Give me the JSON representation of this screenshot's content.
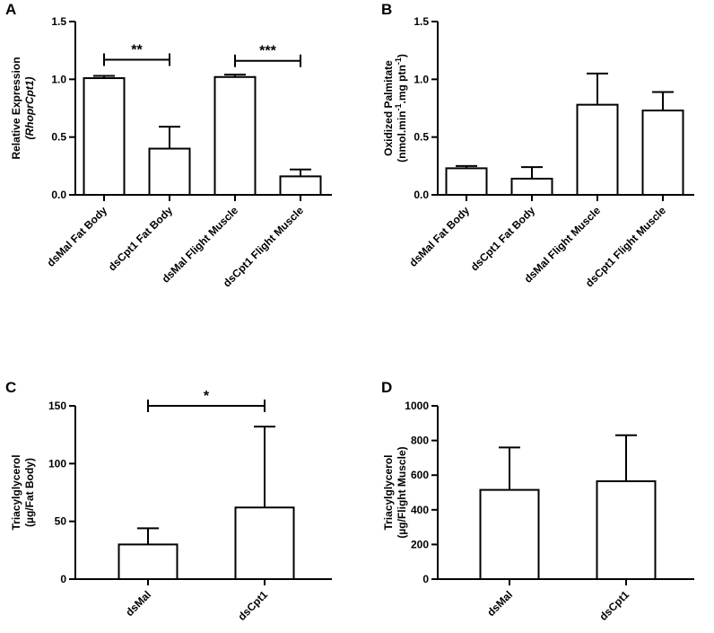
{
  "chart_data": [
    {
      "id": "A",
      "type": "bar",
      "panel_label": "A",
      "ylabel": [
        "Relative Expression",
        "(RhoprCpt1)"
      ],
      "categories": [
        "dsMal Fat Body",
        "dsCpt1 Fat Body",
        "dsMal Flight Muscle",
        "dsCpt1 Flight Muscle"
      ],
      "values": [
        1.01,
        0.4,
        1.02,
        0.16
      ],
      "errors": [
        0.02,
        0.19,
        0.02,
        0.06
      ],
      "ylim": [
        0,
        1.5
      ],
      "yticks": [
        "0.0",
        "0.5",
        "1.0",
        "1.5"
      ],
      "significance": [
        {
          "from": 0,
          "to": 1,
          "label": "**",
          "y": 1.17
        },
        {
          "from": 2,
          "to": 3,
          "label": "***",
          "y": 1.16
        }
      ]
    },
    {
      "id": "B",
      "type": "bar",
      "panel_label": "B",
      "ylabel": [
        "Oxidized Palmitate",
        "(nmol.min-1.mg ptn-1)"
      ],
      "categories": [
        "dsMal Fat Body",
        "dsCpt1 Fat Body",
        "dsMal Flight Muscle",
        "dsCpt1 Flight Muscle"
      ],
      "values": [
        0.23,
        0.14,
        0.78,
        0.73
      ],
      "errors": [
        0.02,
        0.1,
        0.27,
        0.16
      ],
      "ylim": [
        0,
        1.5
      ],
      "yticks": [
        "0.0",
        "0.5",
        "1.0",
        "1.5"
      ],
      "significance": []
    },
    {
      "id": "C",
      "type": "bar",
      "panel_label": "C",
      "ylabel": [
        "Triacylglycerol",
        "(µg/Fat Body)"
      ],
      "categories": [
        "dsMal",
        "dsCpt1"
      ],
      "values": [
        30,
        62
      ],
      "errors": [
        14,
        70
      ],
      "ylim": [
        0,
        150
      ],
      "yticks": [
        "0",
        "50",
        "100",
        "150"
      ],
      "significance": [
        {
          "from": 0,
          "to": 1,
          "label": "*",
          "y": 150
        }
      ]
    },
    {
      "id": "D",
      "type": "bar",
      "panel_label": "D",
      "ylabel": [
        "Triacylglycerol",
        "(µg/Flight  Muscle)"
      ],
      "categories": [
        "dsMal",
        "dsCpt1"
      ],
      "values": [
        515,
        565
      ],
      "errors": [
        245,
        265
      ],
      "ylim": [
        0,
        1000
      ],
      "yticks": [
        "0",
        "200",
        "400",
        "600",
        "800",
        "1000"
      ],
      "significance": []
    }
  ]
}
